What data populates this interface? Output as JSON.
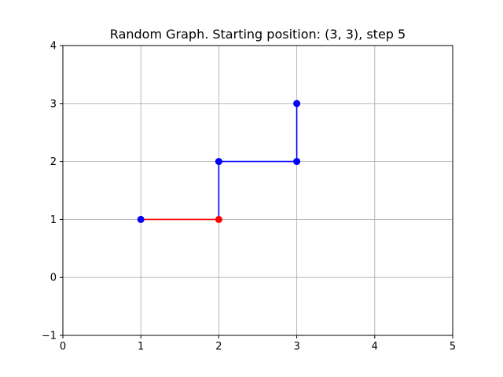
{
  "chart_data": {
    "type": "line",
    "title": "Random Graph. Starting position: (3, 3), step 5",
    "xlabel": "",
    "ylabel": "",
    "xlim": [
      0,
      5
    ],
    "ylim": [
      -1,
      4
    ],
    "x_ticks": [
      0,
      1,
      2,
      3,
      4,
      5
    ],
    "y_ticks": [
      -1,
      0,
      1,
      2,
      3,
      4
    ],
    "x_tick_labels": [
      "0",
      "1",
      "2",
      "3",
      "4",
      "5"
    ],
    "y_tick_labels": [
      "−1",
      "0",
      "1",
      "2",
      "3",
      "4"
    ],
    "grid": true,
    "series": [
      {
        "color": "#0000ff",
        "x": [
          3,
          3,
          2,
          2
        ],
        "y": [
          3,
          2,
          2,
          1
        ],
        "markers": true
      },
      {
        "color": "#ff0000",
        "x": [
          2,
          1
        ],
        "y": [
          1,
          1
        ],
        "markers": false
      }
    ],
    "points": [
      {
        "x": 3,
        "y": 3,
        "color": "#0000ff"
      },
      {
        "x": 3,
        "y": 2,
        "color": "#0000ff"
      },
      {
        "x": 2,
        "y": 2,
        "color": "#0000ff"
      },
      {
        "x": 1,
        "y": 1,
        "color": "#0000ff"
      },
      {
        "x": 2,
        "y": 1,
        "color": "#ff0000"
      }
    ]
  }
}
